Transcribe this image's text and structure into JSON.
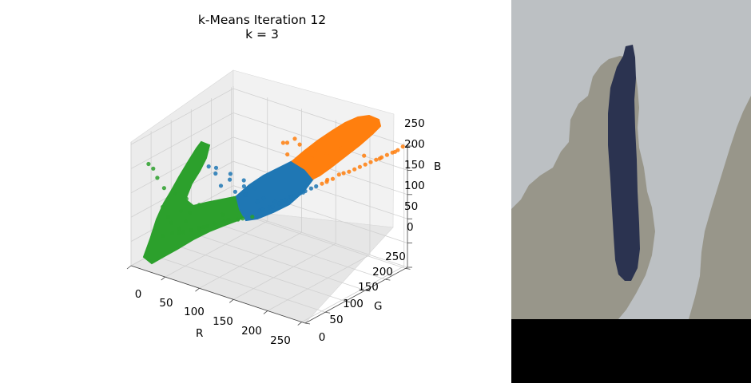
{
  "chart_data": {
    "type": "scatter",
    "title": "k-Means Iteration 12",
    "subtitle": "k = 3",
    "projection": "3d",
    "xlabel": "R",
    "ylabel": "G",
    "zlabel": "B",
    "xlim": [
      0,
      255
    ],
    "ylim": [
      0,
      255
    ],
    "zlim": [
      0,
      255
    ],
    "x_ticks": [
      "0",
      "50",
      "100",
      "150",
      "200",
      "250"
    ],
    "y_ticks": [
      "0",
      "50",
      "100",
      "150",
      "200",
      "250"
    ],
    "z_ticks": [
      "0",
      "50",
      "100",
      "150",
      "200",
      "250"
    ],
    "grid": true,
    "legend": "none",
    "series": [
      {
        "color": "#2ca02c",
        "points": [
          [
            28,
            55,
            55
          ],
          [
            18,
            48,
            48
          ],
          [
            40,
            62,
            60
          ],
          [
            55,
            75,
            70
          ],
          [
            70,
            88,
            80
          ],
          [
            85,
            98,
            90
          ],
          [
            100,
            108,
            95
          ],
          [
            60,
            78,
            72
          ],
          [
            48,
            68,
            65
          ],
          [
            35,
            60,
            58
          ],
          [
            22,
            45,
            150
          ],
          [
            30,
            60,
            135
          ],
          [
            15,
            40,
            170
          ],
          [
            40,
            70,
            125
          ],
          [
            50,
            85,
            110
          ],
          [
            25,
            50,
            90
          ],
          [
            20,
            45,
            110
          ],
          [
            12,
            35,
            190
          ],
          [
            45,
            60,
            85
          ],
          [
            65,
            80,
            75
          ],
          [
            80,
            95,
            85
          ],
          [
            95,
            105,
            92
          ],
          [
            110,
            115,
            100
          ],
          [
            38,
            55,
            70
          ],
          [
            30,
            50,
            80
          ],
          [
            58,
            72,
            68
          ],
          [
            8,
            30,
            200
          ],
          [
            35,
            65,
            100
          ],
          [
            42,
            75,
            95
          ],
          [
            75,
            100,
            95
          ]
        ]
      },
      {
        "color": "#1f77b4",
        "points": [
          [
            115,
            125,
            110
          ],
          [
            125,
            132,
            118
          ],
          [
            135,
            140,
            128
          ],
          [
            145,
            150,
            140
          ],
          [
            155,
            158,
            150
          ],
          [
            165,
            168,
            160
          ],
          [
            120,
            125,
            115
          ],
          [
            130,
            138,
            130
          ],
          [
            140,
            145,
            135
          ],
          [
            150,
            152,
            145
          ],
          [
            160,
            162,
            155
          ],
          [
            170,
            172,
            165
          ],
          [
            60,
            110,
            180
          ],
          [
            75,
            120,
            170
          ],
          [
            90,
            128,
            160
          ],
          [
            105,
            130,
            150
          ],
          [
            85,
            115,
            140
          ],
          [
            70,
            105,
            150
          ],
          [
            95,
            122,
            135
          ],
          [
            110,
            128,
            125
          ],
          [
            128,
            135,
            120
          ],
          [
            100,
            118,
            140
          ],
          [
            80,
            110,
            165
          ],
          [
            65,
            100,
            175
          ],
          [
            118,
            130,
            135
          ],
          [
            138,
            142,
            132
          ],
          [
            148,
            148,
            142
          ],
          [
            55,
            100,
            185
          ],
          [
            92,
            125,
            150
          ],
          [
            158,
            160,
            152
          ]
        ]
      },
      {
        "color": "#ff7f0e",
        "points": [
          [
            175,
            178,
            170
          ],
          [
            185,
            188,
            180
          ],
          [
            195,
            198,
            192
          ],
          [
            205,
            208,
            200
          ],
          [
            215,
            218,
            210
          ],
          [
            225,
            228,
            220
          ],
          [
            235,
            238,
            230
          ],
          [
            245,
            248,
            240
          ],
          [
            180,
            183,
            178
          ],
          [
            190,
            195,
            188
          ],
          [
            200,
            203,
            195
          ],
          [
            210,
            213,
            205
          ],
          [
            220,
            223,
            215
          ],
          [
            230,
            233,
            225
          ],
          [
            240,
            243,
            235
          ],
          [
            250,
            252,
            248
          ],
          [
            150,
            165,
            245
          ],
          [
            140,
            170,
            250
          ],
          [
            120,
            175,
            230
          ],
          [
            130,
            168,
            238
          ],
          [
            165,
            180,
            235
          ],
          [
            190,
            200,
            240
          ],
          [
            175,
            190,
            225
          ],
          [
            160,
            178,
            215
          ],
          [
            200,
            210,
            238
          ],
          [
            135,
            160,
            220
          ],
          [
            178,
            185,
            172
          ],
          [
            212,
            220,
            226
          ],
          [
            228,
            232,
            222
          ],
          [
            242,
            246,
            236
          ]
        ]
      }
    ]
  },
  "segmented_image": {
    "palette": {
      "background": "#bcc0c3",
      "cluster_mid": "#98968a",
      "cluster_dark": "#2b3350",
      "padding": "#000000"
    }
  }
}
